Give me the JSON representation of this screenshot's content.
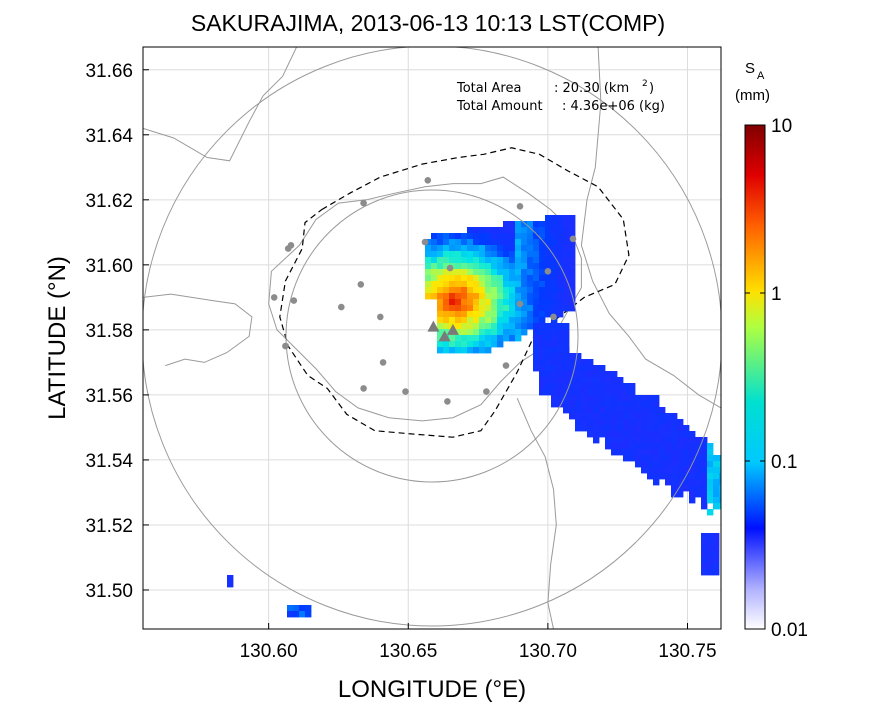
{
  "title": "SAKURAJIMA, 2013-06-13 10:13 LST(COMP)",
  "stats": {
    "area_label": "Total Area",
    "area_value": ": 20.30 (km",
    "area_sup": "2",
    "area_close": ")",
    "amount_label": "Total Amount",
    "amount_value": ": 4.36e+06 (kg)"
  },
  "colorbar": {
    "label": "S",
    "label_sub": "A",
    "unit": "(mm)",
    "ticks": [
      "10",
      "1",
      "0.1",
      "0.01"
    ],
    "scale": "log",
    "colors": [
      "#ffffff",
      "#0000ff",
      "#00ffff",
      "#ffff00",
      "#ff0000",
      "#800000"
    ]
  },
  "chart_data": {
    "type": "heatmap",
    "title": "SAKURAJIMA, 2013-06-13 10:13 LST(COMP)",
    "xlabel": "LONGITUDE (°E)",
    "ylabel": "LATITUDE (°N)",
    "x_ticks": [
      "130.60",
      "130.65",
      "130.70",
      "130.75"
    ],
    "y_ticks": [
      "31.66",
      "31.64",
      "31.62",
      "31.60",
      "31.58",
      "31.56",
      "31.54",
      "31.52",
      "31.50"
    ],
    "xlim": [
      130.555,
      130.762
    ],
    "ylim": [
      31.488,
      31.667
    ],
    "grid": true,
    "colorbar_range_mm": [
      0.01,
      10
    ],
    "vents": [
      [
        130.659,
        31.581
      ],
      [
        130.663,
        31.578
      ],
      [
        130.666,
        31.58
      ]
    ],
    "stations": [
      [
        130.657,
        31.626
      ],
      [
        130.69,
        31.618
      ],
      [
        130.634,
        31.619
      ],
      [
        130.608,
        31.606
      ],
      [
        130.607,
        31.605
      ],
      [
        130.656,
        31.607
      ],
      [
        130.665,
        31.599
      ],
      [
        130.7,
        31.598
      ],
      [
        130.709,
        31.608
      ],
      [
        130.602,
        31.59
      ],
      [
        130.609,
        31.589
      ],
      [
        130.626,
        31.587
      ],
      [
        130.633,
        31.594
      ],
      [
        130.64,
        31.584
      ],
      [
        130.69,
        31.588
      ],
      [
        130.702,
        31.584
      ],
      [
        130.606,
        31.575
      ],
      [
        130.641,
        31.57
      ],
      [
        130.634,
        31.562
      ],
      [
        130.649,
        31.561
      ],
      [
        130.664,
        31.558
      ],
      [
        130.678,
        31.561
      ],
      [
        130.685,
        31.569
      ]
    ],
    "ash_regions": [
      {
        "name": "main-deposit",
        "center": [
          130.68,
          31.592
        ],
        "value_range_mm": [
          0.02,
          5.0
        ]
      },
      {
        "name": "se-plume",
        "center": [
          130.73,
          31.55
        ],
        "value_range_mm": [
          0.01,
          0.12
        ]
      },
      {
        "name": "sw-patch",
        "center": [
          130.611,
          31.492
        ],
        "value_range_mm": [
          0.02,
          0.1
        ]
      },
      {
        "name": "w-speck",
        "center": [
          130.585,
          31.503
        ],
        "value_range_mm": [
          0.03,
          0.05
        ]
      }
    ]
  }
}
